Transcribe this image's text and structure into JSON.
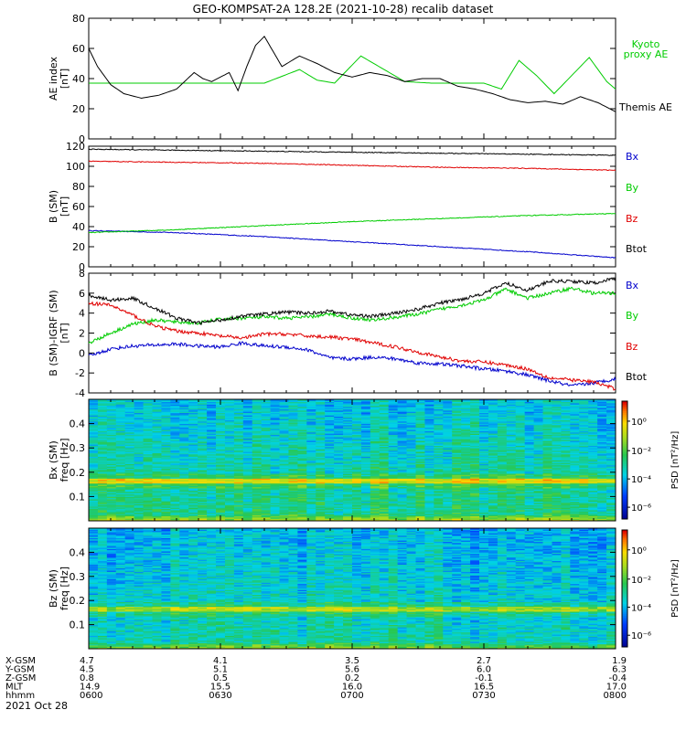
{
  "header": {
    "title": "GEO-KOMPSAT-2A 128.2E (2021-10-28) recalib dataset"
  },
  "time_axis": {
    "ticks": [
      "0600",
      "0630",
      "0700",
      "0730",
      "0800"
    ],
    "range": [
      "0600",
      "0800"
    ],
    "date_label": "2021 Oct 28",
    "rows": [
      {
        "label": "X-GSM",
        "values": [
          "4.7",
          "4.1",
          "3.5",
          "2.7",
          "1.9"
        ]
      },
      {
        "label": "Y-GSM",
        "values": [
          "4.5",
          "5.1",
          "5.6",
          "6.0",
          "6.3"
        ]
      },
      {
        "label": "Z-GSM",
        "values": [
          "0.8",
          "0.5",
          "0.2",
          "-0.1",
          "-0.4"
        ]
      },
      {
        "label": "MLT",
        "values": [
          "14.9",
          "15.5",
          "16.0",
          "16.5",
          "17.0"
        ]
      },
      {
        "label": "hhmm",
        "values": [
          "0600",
          "0630",
          "0700",
          "0730",
          "0800"
        ]
      }
    ]
  },
  "colors": {
    "black": "#000000",
    "red": "#e00000",
    "green": "#00cc00",
    "blue": "#0000cc",
    "cyan": "#00cccc"
  },
  "chart_data": [
    {
      "type": "line",
      "ylabel": "AE index [nT]",
      "ylim": [
        0,
        80
      ],
      "yticks": [
        "0",
        "20",
        "40",
        "60",
        "80"
      ],
      "x_units": "minutes after 0600",
      "series": [
        {
          "name": "Kyoto proxy AE",
          "color": "#00cc00",
          "x": [
            0,
            6,
            40,
            48,
            52,
            56,
            62,
            72,
            78,
            82,
            86,
            90,
            94,
            98,
            102,
            106,
            110,
            114,
            118,
            122,
            126,
            130,
            134,
            138
          ],
          "y": [
            37,
            37,
            37,
            46,
            39,
            37,
            55,
            38,
            37,
            37,
            37,
            37,
            33,
            52,
            42,
            30,
            42,
            54,
            38,
            28,
            40,
            50,
            40,
            37
          ]
        },
        {
          "name": "Themis AE",
          "color": "#000000",
          "x": [
            0,
            2,
            5,
            8,
            12,
            16,
            20,
            24,
            26,
            28,
            32,
            34,
            36,
            38,
            40,
            44,
            48,
            52,
            56,
            60,
            64,
            68,
            72,
            76,
            80,
            84,
            88,
            92,
            96,
            100,
            104,
            108,
            112,
            116,
            120
          ],
          "y": [
            60,
            48,
            36,
            30,
            27,
            29,
            33,
            44,
            40,
            38,
            44,
            32,
            48,
            62,
            68,
            48,
            55,
            50,
            44,
            41,
            44,
            42,
            38,
            40,
            40,
            35,
            33,
            30,
            26,
            24,
            25,
            23,
            28,
            24,
            18
          ]
        }
      ]
    },
    {
      "type": "line",
      "ylabel": "B (SM) [nT]",
      "ylim": [
        0,
        120
      ],
      "yticks": [
        "0",
        "20",
        "40",
        "60",
        "80",
        "100",
        "120"
      ],
      "x_units": "minutes after 0600",
      "series": [
        {
          "name": "Bx",
          "color": "#0000cc",
          "x": [
            0,
            20,
            40,
            60,
            80,
            100,
            120
          ],
          "y": [
            36,
            34,
            30,
            25,
            20,
            15,
            9
          ]
        },
        {
          "name": "By",
          "color": "#00cc00",
          "x": [
            0,
            20,
            40,
            60,
            80,
            100,
            120
          ],
          "y": [
            34,
            37,
            41,
            45,
            48,
            51,
            53
          ]
        },
        {
          "name": "Bz",
          "color": "#e00000",
          "x": [
            0,
            20,
            40,
            60,
            80,
            100,
            120
          ],
          "y": [
            105,
            104,
            103,
            101,
            99,
            98,
            96
          ]
        },
        {
          "name": "Btot",
          "color": "#000000",
          "x": [
            0,
            20,
            40,
            60,
            80,
            100,
            120
          ],
          "y": [
            117,
            116,
            115,
            114,
            113,
            112,
            111
          ]
        }
      ]
    },
    {
      "type": "line",
      "ylabel": "B (SM)-IGRF (SM) [nT]",
      "ylim": [
        -4,
        8
      ],
      "yticks": [
        "-4",
        "-2",
        "0",
        "2",
        "4",
        "6",
        "8"
      ],
      "x_units": "minutes after 0600",
      "series": [
        {
          "name": "Bx",
          "color": "#0000cc",
          "x": [
            0,
            5,
            10,
            15,
            20,
            25,
            30,
            35,
            40,
            45,
            50,
            55,
            60,
            65,
            70,
            75,
            80,
            85,
            90,
            95,
            100,
            105,
            110,
            115,
            120
          ],
          "y": [
            -0.3,
            0.4,
            0.7,
            0.8,
            0.9,
            0.7,
            0.6,
            1.0,
            0.7,
            0.6,
            0.3,
            -0.5,
            -0.6,
            -0.4,
            -0.6,
            -1.0,
            -1.1,
            -1.3,
            -1.6,
            -1.8,
            -2.2,
            -2.8,
            -3.3,
            -3.0,
            -2.6
          ]
        },
        {
          "name": "By",
          "color": "#00cc00",
          "x": [
            0,
            5,
            10,
            15,
            20,
            25,
            30,
            35,
            40,
            45,
            50,
            55,
            60,
            65,
            70,
            75,
            80,
            85,
            90,
            95,
            100,
            105,
            110,
            115,
            120
          ],
          "y": [
            1.0,
            2.0,
            2.9,
            3.3,
            3.1,
            3.0,
            3.4,
            3.5,
            3.6,
            3.5,
            3.6,
            3.9,
            3.5,
            3.3,
            3.6,
            3.9,
            4.4,
            4.8,
            5.3,
            6.4,
            5.5,
            6.0,
            6.5,
            6.0,
            6.0
          ]
        },
        {
          "name": "Bz",
          "color": "#e00000",
          "x": [
            0,
            5,
            10,
            15,
            20,
            25,
            30,
            35,
            40,
            45,
            50,
            55,
            60,
            65,
            70,
            75,
            80,
            85,
            90,
            95,
            100,
            105,
            110,
            115,
            120
          ],
          "y": [
            5.0,
            4.8,
            3.8,
            2.7,
            2.2,
            2.0,
            1.7,
            1.5,
            1.9,
            1.9,
            1.7,
            1.6,
            1.4,
            1.0,
            0.6,
            0.1,
            -0.4,
            -0.8,
            -0.9,
            -1.2,
            -1.6,
            -2.5,
            -2.7,
            -2.9,
            -3.6
          ]
        },
        {
          "name": "Btot",
          "color": "#000000",
          "x": [
            0,
            5,
            10,
            15,
            20,
            25,
            30,
            35,
            40,
            45,
            50,
            55,
            60,
            65,
            70,
            75,
            80,
            85,
            90,
            95,
            100,
            105,
            110,
            115,
            120
          ],
          "y": [
            5.8,
            5.3,
            5.5,
            4.5,
            3.5,
            3.0,
            3.3,
            3.7,
            3.9,
            4.1,
            4.0,
            4.2,
            3.8,
            3.7,
            4.0,
            4.4,
            5.0,
            5.4,
            6.0,
            7.0,
            6.3,
            7.2,
            7.2,
            7.0,
            7.5
          ]
        }
      ]
    },
    {
      "type": "heatmap",
      "ylabel": "Bx (SM) freq [Hz]",
      "ylim": [
        0,
        0.5
      ],
      "yticks": [
        "0.1",
        "0.2",
        "0.3",
        "0.4"
      ],
      "colorbar_label": "PSD [nT²/Hz]",
      "colorbar_ticks": [
        "10⁰",
        "10⁻²",
        "10⁻⁴",
        "10⁻⁶"
      ],
      "features": {
        "peak_band_hz": 0.165,
        "low_freq_enhanced": true
      }
    },
    {
      "type": "heatmap",
      "ylabel": "Bz (SM) freq [Hz]",
      "ylim": [
        0,
        0.5
      ],
      "yticks": [
        "0.1",
        "0.2",
        "0.3",
        "0.4"
      ],
      "colorbar_label": "PSD [nT²/Hz]",
      "colorbar_ticks": [
        "10⁰",
        "10⁻²",
        "10⁻⁴",
        "10⁻⁶"
      ],
      "features": {
        "peak_band_hz": 0.165,
        "low_freq_enhanced": true
      }
    }
  ],
  "panel_labels": [
    {
      "lines": [
        "Kyoto",
        "proxy AE"
      ],
      "color": "#00cc00"
    },
    {
      "lines": [
        "Themis AE"
      ],
      "color": "#000000"
    }
  ]
}
